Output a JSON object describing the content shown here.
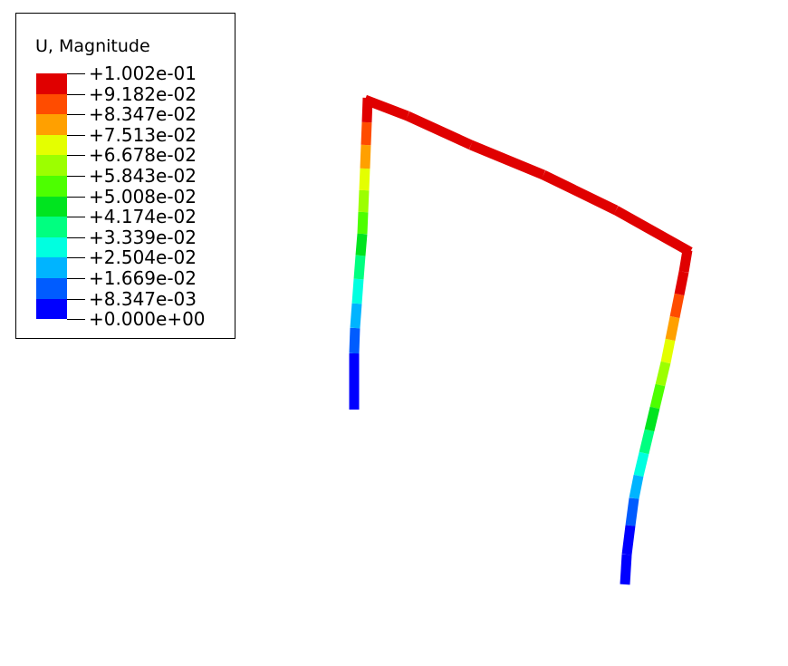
{
  "legend": {
    "title": "U, Magnitude",
    "labels": [
      "+1.002e-01",
      "+9.182e-02",
      "+8.347e-02",
      "+7.513e-02",
      "+6.678e-02",
      "+5.843e-02",
      "+5.008e-02",
      "+4.174e-02",
      "+3.339e-02",
      "+2.504e-02",
      "+1.669e-02",
      "+8.347e-03",
      "+0.000e+00"
    ],
    "colors": [
      "#e00000",
      "#ff4c00",
      "#ffa000",
      "#e4ff00",
      "#9cff00",
      "#4dff00",
      "#00e41f",
      "#00ff80",
      "#00ffe0",
      "#00b4ff",
      "#005cff",
      "#0000ff"
    ]
  }
}
